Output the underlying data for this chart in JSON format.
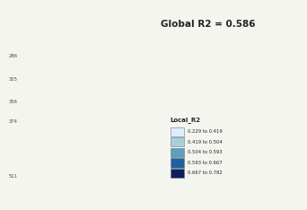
{
  "title": "Global R2 = 0.586",
  "title_fontsize": 7.5,
  "background_color": "#f5f5f0",
  "legend_title": "Local_R2",
  "legend_labels": [
    "0.229 to 0.419",
    "0.419 to 0.504",
    "0.504 to 0.593",
    "0.593 to 0.667",
    "0.667 to 0.782"
  ],
  "legend_colors": [
    "#ddeeff",
    "#a8cfe0",
    "#5a9fc0",
    "#2060a0",
    "#0a2060"
  ],
  "left_yticklabels": [
    "286",
    "325",
    "356",
    "374",
    "511"
  ],
  "left_ytick_ypos": [
    0.755,
    0.635,
    0.515,
    0.415,
    0.13
  ]
}
